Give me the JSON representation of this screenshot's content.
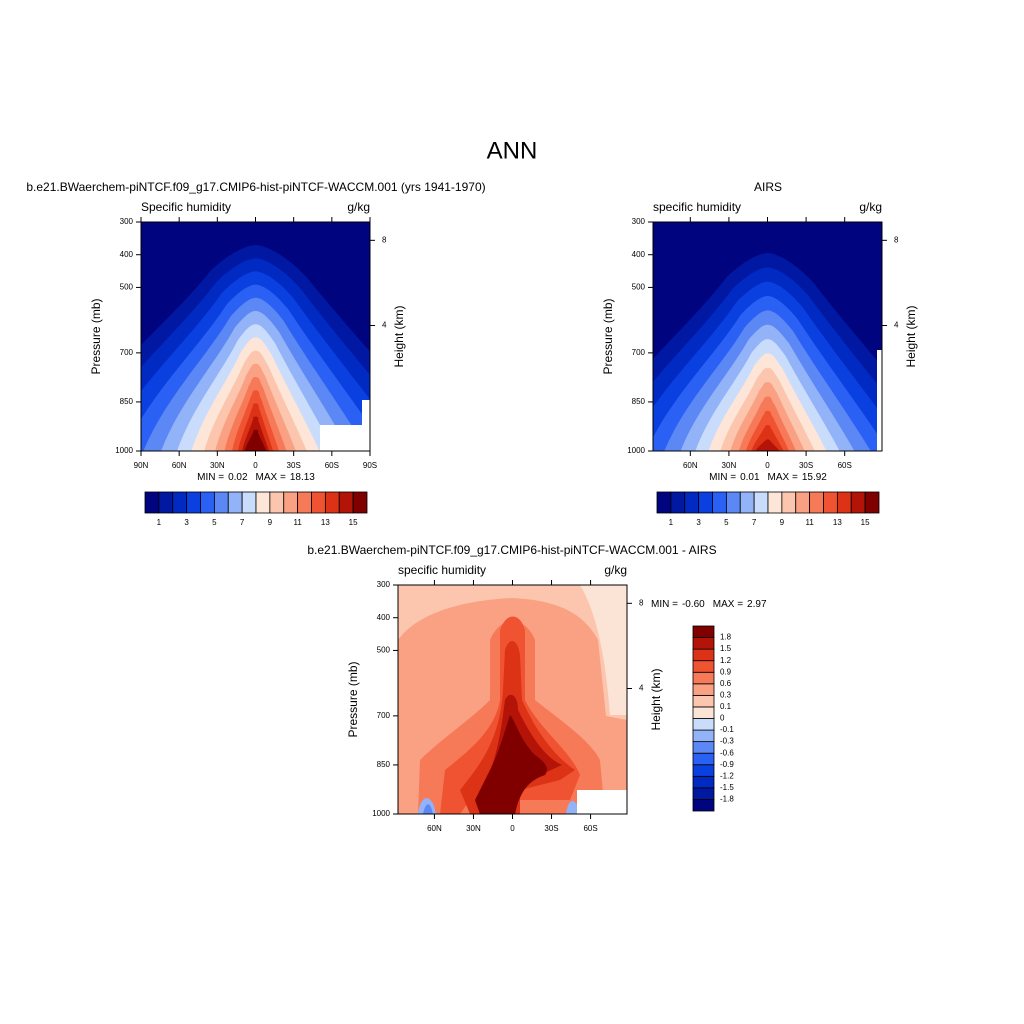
{
  "title": "ANN",
  "chart_data": [
    {
      "type": "contour",
      "title": "b.e21.BWaerchem-piNTCF.f09_g17.CMIP6-hist-piNTCF-WACCM.001 (yrs 1941-1970)",
      "left_string": "Specific humidity",
      "right_string": "g/kg",
      "ylabel": "Pressure (mb)",
      "y2label": "Height (km)",
      "ylim": [
        1000,
        300
      ],
      "yticks": [
        300,
        400,
        500,
        700,
        850,
        1000
      ],
      "y2ticks": [
        4,
        8
      ],
      "xlim": [
        90,
        -90
      ],
      "xticks": [
        {
          "value": 90,
          "label": "90N"
        },
        {
          "value": 60,
          "label": "60N"
        },
        {
          "value": 30,
          "label": "30N"
        },
        0,
        {
          "value": -30,
          "label": "30S"
        },
        {
          "value": -60,
          "label": "60S"
        },
        {
          "value": -90,
          "label": "90S"
        }
      ],
      "min_label": "MIN =",
      "min": 0.02,
      "max_label": "MAX =",
      "max": 18.13,
      "colorbar": {
        "orientation": "horizontal",
        "colors": [
          "#00057f",
          "#0018a2",
          "#002ac2",
          "#0b40e0",
          "#2b60f4",
          "#5c88f5",
          "#93b3f8",
          "#cadcfc",
          "#fde6d8",
          "#fcc6ae",
          "#faa184",
          "#f77a58",
          "#f05332",
          "#dc3216",
          "#b41308",
          "#800000"
        ],
        "ticks": [
          1,
          3,
          5,
          7,
          9,
          11,
          13,
          15
        ]
      }
    },
    {
      "type": "contour",
      "title": "AIRS",
      "left_string": "specific humidity",
      "right_string": "g/kg",
      "ylabel": "Pressure (mb)",
      "y2label": "Height (km)",
      "ylim": [
        1000,
        300
      ],
      "yticks": [
        300,
        400,
        500,
        700,
        850,
        1000
      ],
      "y2ticks": [
        4,
        8
      ],
      "xlim": [
        89,
        -89
      ],
      "xticks": [
        {
          "value": 60,
          "label": "60N"
        },
        {
          "value": 30,
          "label": "30N"
        },
        0,
        {
          "value": -30,
          "label": "30S"
        },
        {
          "value": -60,
          "label": "60S"
        }
      ],
      "min_label": "MIN =",
      "min": 0.01,
      "max_label": "MAX =",
      "max": 15.92,
      "colorbar": {
        "orientation": "horizontal",
        "colors": [
          "#00057f",
          "#0018a2",
          "#002ac2",
          "#0b40e0",
          "#2b60f4",
          "#5c88f5",
          "#93b3f8",
          "#cadcfc",
          "#fde6d8",
          "#fcc6ae",
          "#faa184",
          "#f77a58",
          "#f05332",
          "#dc3216",
          "#b41308",
          "#800000"
        ],
        "ticks": [
          1,
          3,
          5,
          7,
          9,
          11,
          13,
          15
        ]
      }
    },
    {
      "type": "contour",
      "title": "b.e21.BWaerchem-piNTCF.f09_g17.CMIP6-hist-piNTCF-WACCM.001 - AIRS",
      "left_string": "specific humidity",
      "right_string": "g/kg",
      "ylabel": "Pressure (mb)",
      "y2label": "Height (km)",
      "ylim": [
        1000,
        300
      ],
      "yticks": [
        300,
        400,
        500,
        700,
        850,
        1000
      ],
      "y2ticks": [
        4,
        8
      ],
      "xlim": [
        88,
        -88
      ],
      "xticks": [
        {
          "value": 60,
          "label": "60N"
        },
        {
          "value": 30,
          "label": "30N"
        },
        0,
        {
          "value": -30,
          "label": "30S"
        },
        {
          "value": -60,
          "label": "60S"
        }
      ],
      "min_label": "MIN =",
      "min": {
        "value": -0.6,
        "label": "-0.60"
      },
      "max_label": "MAX =",
      "max": 2.97,
      "colorbar": {
        "orientation": "vertical",
        "colors": [
          "#00057f",
          "#0018a2",
          "#002ac2",
          "#0b40e0",
          "#2b60f4",
          "#5c88f5",
          "#93b3f8",
          "#cadcfc",
          "#fbe3d6",
          "#fcc6ae",
          "#faa184",
          "#f77a58",
          "#f05332",
          "#dc3216",
          "#b41308",
          "#800000"
        ],
        "ticks": [
          -1.8,
          -1.5,
          -1.2,
          -0.9,
          -0.6,
          -0.3,
          -0.1,
          0,
          0.1,
          0.3,
          0.6,
          0.9,
          1.2,
          1.5,
          1.8
        ]
      }
    }
  ]
}
